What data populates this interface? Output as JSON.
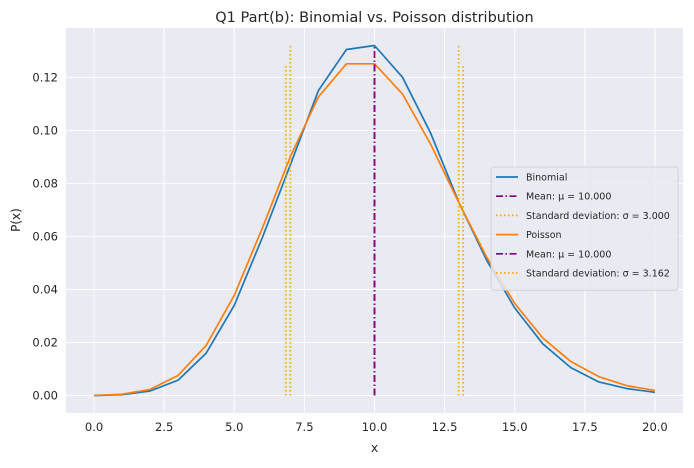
{
  "chart_data": {
    "type": "line",
    "title": "Q1 Part(b): Binomial vs. Poisson distribution",
    "xlabel": "x",
    "ylabel": "P(x)",
    "xlim": [
      -1,
      21
    ],
    "ylim": [
      -0.0066,
      0.1386
    ],
    "grid": true,
    "legend_position": "center-right",
    "x_ticks": [
      {
        "value": 0.0,
        "label": "0.0"
      },
      {
        "value": 2.5,
        "label": "2.5"
      },
      {
        "value": 5.0,
        "label": "5.0"
      },
      {
        "value": 7.5,
        "label": "7.5"
      },
      {
        "value": 10.0,
        "label": "10.0"
      },
      {
        "value": 12.5,
        "label": "12.5"
      },
      {
        "value": 15.0,
        "label": "15.0"
      },
      {
        "value": 17.5,
        "label": "17.5"
      },
      {
        "value": 20.0,
        "label": "20.0"
      }
    ],
    "y_ticks": [
      {
        "value": 0.0,
        "label": "0.00"
      },
      {
        "value": 0.02,
        "label": "0.02"
      },
      {
        "value": 0.04,
        "label": "0.04"
      },
      {
        "value": 0.06,
        "label": "0.06"
      },
      {
        "value": 0.08,
        "label": "0.08"
      },
      {
        "value": 0.1,
        "label": "0.10"
      },
      {
        "value": 0.12,
        "label": "0.12"
      }
    ],
    "x": [
      0,
      1,
      2,
      3,
      4,
      5,
      6,
      7,
      8,
      9,
      10,
      11,
      12,
      13,
      14,
      15,
      16,
      17,
      18,
      19,
      20
    ],
    "series": [
      {
        "name": "Binomial",
        "color": "#1f77b4",
        "values": [
          0.0,
          0.0003,
          0.0017,
          0.0058,
          0.016,
          0.034,
          0.0595,
          0.087,
          0.115,
          0.1305,
          0.132,
          0.12,
          0.099,
          0.073,
          0.051,
          0.033,
          0.0195,
          0.0105,
          0.0051,
          0.0026,
          0.0012
        ]
      },
      {
        "name": "Poisson",
        "color": "#ff7f0e",
        "values": [
          0.0,
          0.0005,
          0.0023,
          0.0076,
          0.0189,
          0.0378,
          0.0631,
          0.0901,
          0.1126,
          0.1251,
          0.1251,
          0.1137,
          0.0948,
          0.0729,
          0.0521,
          0.0347,
          0.0217,
          0.0128,
          0.0071,
          0.0037,
          0.0019
        ]
      }
    ],
    "vlines": [
      {
        "x": 10.0,
        "ymax": 0.132,
        "color": "#800080",
        "style": "dashdot"
      },
      {
        "x": 7.0,
        "ymax": 0.132,
        "color": "#ffa500",
        "style": "dotted"
      },
      {
        "x": 13.0,
        "ymax": 0.132,
        "color": "#ffa500",
        "style": "dotted"
      },
      {
        "x": 6.838,
        "ymax": 0.1251,
        "color": "#ffa500",
        "style": "dotted"
      },
      {
        "x": 13.162,
        "ymax": 0.1251,
        "color": "#ffa500",
        "style": "dotted"
      },
      {
        "x": 10.0,
        "ymax": 0.1251,
        "color": "#800080",
        "style": "dashdot"
      }
    ],
    "legend": [
      {
        "label": "Binomial",
        "color": "#1f77b4",
        "style": "solid"
      },
      {
        "label": "Mean: μ = 10.000",
        "color": "#800080",
        "style": "dashdot"
      },
      {
        "label": "Standard deviation: σ = 3.000",
        "color": "#ffa500",
        "style": "dotted"
      },
      {
        "label": "Poisson",
        "color": "#ff7f0e",
        "style": "solid"
      },
      {
        "label": "Mean: μ = 10.000",
        "color": "#800080",
        "style": "dashdot"
      },
      {
        "label": "Standard deviation: σ = 3.162",
        "color": "#ffa500",
        "style": "dotted"
      }
    ]
  }
}
